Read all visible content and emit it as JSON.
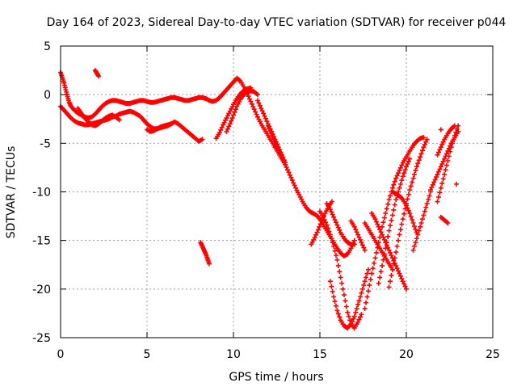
{
  "chart_data": {
    "type": "scatter",
    "title": "Day 164 of 2023, Sidereal Day-to-day VTEC variation (SDTVAR) for receiver p044",
    "xlabel": "GPS time / hours",
    "ylabel": "SDTVAR / TECUs",
    "xlim": [
      0,
      25
    ],
    "ylim": [
      -25,
      5
    ],
    "xticks": [
      0,
      5,
      10,
      15,
      20,
      25
    ],
    "yticks": [
      5,
      0,
      -5,
      -10,
      -15,
      -20,
      -25
    ],
    "grid": true,
    "grid_style": "dotted",
    "marker": "+",
    "marker_color": "#ff0000",
    "series": [
      {
        "x": [
          0.0,
          0.1,
          0.2,
          0.3,
          0.4,
          0.5,
          0.6,
          0.8,
          1.0,
          1.2,
          1.4,
          1.6,
          1.8,
          2.0,
          2.2,
          2.4,
          2.6,
          2.8,
          3.0,
          3.2,
          3.4,
          3.6,
          3.8,
          4.0,
          4.2,
          4.4,
          4.6,
          4.8,
          5.0,
          5.2,
          5.4,
          5.6,
          5.8,
          6.0,
          6.2,
          6.4,
          6.6,
          6.8,
          7.0,
          7.2,
          7.4,
          7.6,
          7.8,
          8.0,
          8.2,
          8.4,
          8.6,
          8.8,
          9.0,
          9.2,
          9.4,
          9.6,
          9.8,
          10.0,
          10.2,
          10.4,
          10.6,
          10.8,
          11.0,
          11.2,
          11.4,
          11.6,
          11.8,
          12.0,
          12.2,
          12.4,
          12.6,
          12.8,
          13.0
        ],
        "y": [
          2.3,
          1.8,
          1.2,
          0.5,
          -0.2,
          -0.8,
          -1.2,
          -1.6,
          -1.9,
          -2.1,
          -2.3,
          -2.4,
          -2.3,
          -2.0,
          -1.6,
          -1.2,
          -0.9,
          -0.7,
          -0.6,
          -0.6,
          -0.7,
          -0.8,
          -0.9,
          -0.9,
          -0.8,
          -0.7,
          -0.6,
          -0.6,
          -0.7,
          -0.8,
          -0.8,
          -0.7,
          -0.6,
          -0.5,
          -0.4,
          -0.3,
          -0.3,
          -0.4,
          -0.5,
          -0.6,
          -0.6,
          -0.5,
          -0.4,
          -0.3,
          -0.3,
          -0.4,
          -0.6,
          -0.7,
          -0.6,
          -0.3,
          0.1,
          0.5,
          0.9,
          1.3,
          1.7,
          1.4,
          0.8,
          0.1,
          -0.7,
          -1.5,
          -2.3,
          -3.0,
          -3.6,
          -4.2,
          -4.8,
          -5.4,
          -6.0,
          -6.6,
          -7.2
        ]
      },
      {
        "x": [
          0.0,
          0.2,
          0.4,
          0.6,
          0.8,
          1.0,
          1.2,
          1.4,
          1.6,
          1.8,
          2.0,
          2.2,
          2.4,
          2.6,
          2.8,
          3.0,
          3.2,
          3.4,
          3.6,
          3.8,
          4.0,
          4.2,
          4.4,
          4.6,
          4.8,
          5.0,
          5.2,
          5.4,
          5.6,
          5.8,
          6.0,
          6.2,
          6.4,
          6.6,
          6.8,
          7.0,
          7.2,
          7.4,
          7.6,
          7.8,
          8.0,
          8.2
        ],
        "y": [
          -1.2,
          -1.6,
          -2.0,
          -2.4,
          -2.7,
          -2.9,
          -3.0,
          -3.1,
          -3.1,
          -3.0,
          -2.9,
          -2.8,
          -2.7,
          -2.6,
          -2.5,
          -2.3,
          -2.2,
          -2.0,
          -1.9,
          -1.8,
          -1.7,
          -1.8,
          -2.0,
          -2.2,
          -2.6,
          -3.0,
          -3.3,
          -3.5,
          -3.5,
          -3.4,
          -3.3,
          -3.2,
          -3.0,
          -2.8,
          -3.0,
          -3.3,
          -3.6,
          -3.9,
          -4.2,
          -4.5,
          -4.8,
          -4.6
        ]
      },
      {
        "x": [
          1.0,
          1.2,
          1.4,
          1.6,
          1.8,
          2.0,
          2.2,
          2.4,
          2.6,
          2.8,
          3.0,
          3.2,
          3.4
        ],
        "y": [
          -1.4,
          -1.9,
          -2.4,
          -2.8,
          -3.1,
          -3.2,
          -3.0,
          -2.7,
          -2.4,
          -2.2,
          -2.1,
          -2.3,
          -2.6
        ]
      },
      {
        "x": [
          2.0,
          2.1,
          2.2
        ],
        "y": [
          2.5,
          2.2,
          1.9
        ]
      },
      {
        "x": [
          5.0,
          5.2,
          5.4,
          5.6,
          5.8,
          6.0,
          6.2,
          6.4
        ],
        "y": [
          -3.6,
          -3.8,
          -3.7,
          -3.5,
          -3.3,
          -3.2,
          -3.1,
          -3.0
        ]
      },
      {
        "x": [
          8.1,
          8.2,
          8.3,
          8.4,
          8.5,
          8.6
        ],
        "y": [
          -15.2,
          -15.6,
          -16.0,
          -16.4,
          -16.9,
          -17.4
        ]
      },
      {
        "x": [
          9.0,
          9.2,
          9.4,
          9.6,
          9.8,
          10.0,
          10.2,
          10.4,
          10.6,
          10.8,
          11.0
        ],
        "y": [
          -4.5,
          -3.9,
          -3.1,
          -2.4,
          -1.7,
          -1.0,
          -0.4,
          0.1,
          0.4,
          0.6,
          0.7
        ]
      },
      {
        "x": [
          9.6,
          9.8,
          10.0,
          10.2,
          10.4,
          10.6,
          10.8,
          11.0,
          11.2,
          11.4
        ],
        "y": [
          -3.8,
          -3.0,
          -2.1,
          -1.2,
          -0.5,
          0.0,
          0.3,
          0.4,
          0.3,
          0.0
        ]
      },
      {
        "x": [
          11.4,
          11.6,
          11.8,
          12.0,
          12.2,
          12.4,
          12.6,
          12.8,
          13.0
        ],
        "y": [
          -0.6,
          -1.4,
          -2.2,
          -3.0,
          -3.8,
          -4.6,
          -5.4,
          -6.2,
          -7.0
        ]
      },
      {
        "x": [
          12.0,
          12.2,
          12.4,
          12.6,
          12.8,
          13.0,
          13.2,
          13.4,
          13.6,
          13.8,
          14.0,
          14.2,
          14.4,
          14.6,
          14.8,
          15.0,
          15.2,
          15.4,
          15.6,
          15.8,
          16.0,
          16.2,
          16.4,
          16.6,
          16.8,
          17.0
        ],
        "y": [
          -3.2,
          -4.0,
          -4.8,
          -5.6,
          -6.4,
          -7.2,
          -8.0,
          -8.8,
          -9.6,
          -10.3,
          -11.0,
          -11.6,
          -12.0,
          -12.2,
          -12.4,
          -12.8,
          -13.4,
          -14.0,
          -14.6,
          -15.2,
          -15.8,
          -16.3,
          -16.6,
          -16.4,
          -15.8,
          -15.0
        ]
      },
      {
        "x": [
          14.5,
          14.7,
          14.9,
          15.1,
          15.3,
          15.5,
          15.7
        ],
        "y": [
          -15.4,
          -14.7,
          -13.9,
          -13.0,
          -12.2,
          -11.5,
          -11.0
        ]
      },
      {
        "x": [
          15.0,
          15.2,
          15.4,
          15.6,
          15.8,
          16.0,
          16.2,
          16.4,
          16.6,
          16.8,
          17.0,
          17.2,
          17.4
        ],
        "y": [
          -12.0,
          -12.6,
          -13.4,
          -14.4,
          -15.6,
          -17.0,
          -18.8,
          -20.6,
          -22.4,
          -23.6,
          -24.0,
          -23.4,
          -22.6
        ]
      },
      {
        "x": [
          15.4,
          15.6,
          15.8,
          16.0,
          16.2,
          16.4,
          16.6,
          16.8,
          17.0
        ],
        "y": [
          -11.2,
          -11.8,
          -12.6,
          -13.4,
          -14.2,
          -14.8,
          -15.2,
          -15.4,
          -15.4
        ]
      },
      {
        "x": [
          15.6,
          15.8,
          16.0,
          16.2,
          16.4,
          16.6,
          16.8,
          17.0,
          17.2,
          17.4,
          17.6,
          17.8
        ],
        "y": [
          -19.2,
          -20.8,
          -22.2,
          -23.2,
          -23.8,
          -24.0,
          -23.6,
          -22.8,
          -21.6,
          -20.4,
          -19.2,
          -18.0
        ]
      },
      {
        "x": [
          16.8,
          17.0,
          17.2,
          17.4,
          17.6
        ],
        "y": [
          -13.0,
          -13.6,
          -14.4,
          -15.2,
          -16.0
        ]
      },
      {
        "x": [
          17.6,
          17.8,
          18.0,
          18.2,
          18.4,
          18.6,
          18.8,
          19.0,
          19.2,
          19.4,
          19.6,
          19.8,
          20.0,
          20.2,
          20.4,
          20.6,
          20.8,
          21.0
        ],
        "y": [
          -22.0,
          -20.2,
          -18.4,
          -16.8,
          -15.2,
          -13.6,
          -12.2,
          -10.8,
          -9.6,
          -8.6,
          -7.8,
          -7.0,
          -6.4,
          -5.8,
          -5.2,
          -4.8,
          -4.5,
          -4.4
        ]
      },
      {
        "x": [
          17.6,
          17.8,
          18.0,
          18.2,
          18.4,
          18.6,
          18.8,
          19.0,
          19.2
        ],
        "y": [
          -13.2,
          -13.8,
          -14.4,
          -15.0,
          -15.6,
          -16.2,
          -16.8,
          -17.4,
          -18.0
        ]
      },
      {
        "x": [
          18.0,
          18.2,
          18.4,
          18.6,
          18.8,
          19.0,
          19.2,
          19.4,
          19.6,
          19.8,
          20.0
        ],
        "y": [
          -12.2,
          -12.8,
          -13.6,
          -14.4,
          -15.2,
          -16.0,
          -16.8,
          -17.6,
          -18.4,
          -19.2,
          -20.0
        ]
      },
      {
        "x": [
          18.4,
          18.6,
          18.8,
          19.0,
          19.2,
          19.4,
          19.6,
          19.8,
          20.0,
          20.2
        ],
        "y": [
          -19.4,
          -17.6,
          -15.8,
          -14.0,
          -12.4,
          -10.8,
          -9.6,
          -8.4,
          -7.4,
          -6.6
        ]
      },
      {
        "x": [
          19.0,
          19.2,
          19.4,
          19.6,
          19.8,
          20.0,
          20.2,
          20.4,
          20.6,
          20.8,
          21.0,
          21.2
        ],
        "y": [
          -19.8,
          -18.0,
          -16.2,
          -14.4,
          -12.8,
          -11.2,
          -9.8,
          -8.6,
          -7.4,
          -6.4,
          -5.4,
          -4.6
        ]
      },
      {
        "x": [
          19.2,
          19.4,
          19.6,
          19.8,
          20.0,
          20.2,
          20.4,
          20.6
        ],
        "y": [
          -10.0,
          -10.2,
          -10.4,
          -10.8,
          -11.4,
          -12.2,
          -13.2,
          -14.2
        ]
      },
      {
        "x": [
          20.4,
          20.6,
          20.8,
          21.0,
          21.2,
          21.4
        ],
        "y": [
          -16.0,
          -14.8,
          -13.6,
          -12.4,
          -11.2,
          -10.0
        ]
      },
      {
        "x": [
          21.4,
          21.6,
          21.8,
          22.0,
          22.2,
          22.4,
          22.6,
          22.8,
          23.0
        ],
        "y": [
          -9.8,
          -9.0,
          -8.2,
          -7.4,
          -6.6,
          -5.8,
          -5.0,
          -4.4,
          -3.8
        ]
      },
      {
        "x": [
          21.8,
          22.0,
          22.2,
          22.4,
          22.6,
          22.8,
          23.0
        ],
        "y": [
          -11.0,
          -9.6,
          -8.2,
          -6.8,
          -5.4,
          -4.2,
          -3.2
        ]
      },
      {
        "x": [
          21.8,
          22.0,
          22.2,
          22.4,
          22.6,
          22.8
        ],
        "y": [
          -6.2,
          -5.4,
          -4.6,
          -4.0,
          -3.5,
          -3.2
        ]
      },
      {
        "x": [
          22.0,
          22.2,
          22.4
        ],
        "y": [
          -12.6,
          -12.9,
          -13.2
        ]
      },
      {
        "x": [
          22.0
        ],
        "y": [
          -3.6
        ]
      },
      {
        "x": [
          22.9
        ],
        "y": [
          -9.2
        ]
      }
    ]
  }
}
